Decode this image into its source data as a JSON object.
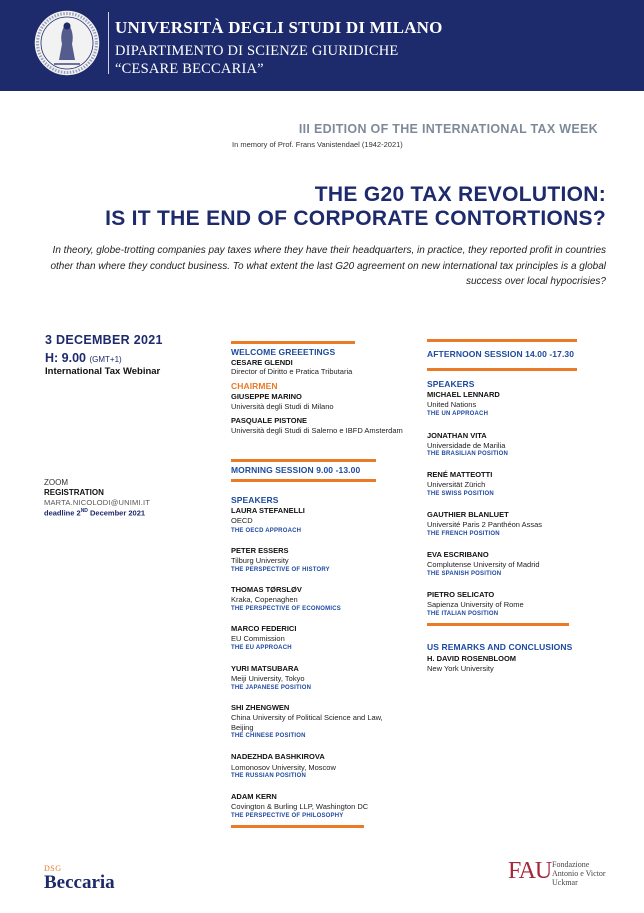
{
  "header": {
    "university": "UNIVERSITÀ DEGLI STUDI DI MILANO",
    "department_line1": "DIPARTIMENTO DI SCIENZE GIURIDICHE",
    "department_line2": "“CESARE BECCARIA”"
  },
  "edition": "III EDITION OF THE INTERNATIONAL TAX WEEK",
  "memory": "In memory of Prof. Frans Vanistendael (1942-2021)",
  "title": {
    "line1": "THE G20 TAX REVOLUTION:",
    "line2": "IS IT THE END OF CORPORATE CONTORTIONS?"
  },
  "intro": "In theory, globe-trotting companies pay taxes where they have their headquarters, in practice, they reported profit in countries other than where they conduct business. To what extent the last G20 agreement on new international tax principles is a global success over local hypocrisies?",
  "event": {
    "date": "3 DECEMBER 2021",
    "time": "H: 9.00",
    "timezone": "(GMT+1)",
    "format": "International Tax Webinar",
    "platform": "ZOOM",
    "registration_label": "REGISTRATION",
    "email": "MARTA.NICOLODI@UNIMI.IT",
    "deadline_prefix": "deadline  2",
    "deadline_sup": "ND",
    "deadline_suffix": " December 2021"
  },
  "welcome": {
    "label": "WELCOME GREEETINGS",
    "name": "CESARE GLENDI",
    "role": "Director of Diritto e Pratica Tributaria"
  },
  "chairmen": {
    "label": "CHAIRMEN",
    "people": [
      {
        "name": "GIUSEPPE MARINO",
        "affiliation": "Università degli Studi di Milano"
      },
      {
        "name": "PASQUALE PISTONE",
        "affiliation": "Università degli Studi di Salerno e IBFD Amsterdam"
      }
    ]
  },
  "morning": {
    "label": "MORNING SESSION 9.00 -13.00",
    "speakers_label": "SPEAKERS",
    "speakers": [
      {
        "name": "LAURA STEFANELLI",
        "affiliation": "OECD",
        "topic": "THE OECD APPROACH"
      },
      {
        "name": "PETER ESSERS",
        "affiliation": "Tilburg University",
        "topic": "THE PERSPECTIVE OF HISTORY"
      },
      {
        "name": "THOMAS TØRSLØV",
        "affiliation": "Kraka, Copenaghen",
        "topic": "THE PERSPECTIVE OF ECONOMICS"
      },
      {
        "name": "MARCO FEDERICI",
        "affiliation": "EU Commission",
        "topic": "THE EU APPROACH"
      },
      {
        "name": "YURI MATSUBARA",
        "affiliation": "Meiji University, Tokyo",
        "topic": "THE JAPANESE POSITION"
      },
      {
        "name": "SHI ZHENGWEN",
        "affiliation": "China University of Political Science and Law, Beijing",
        "topic": "THE CHINESE POSITION"
      },
      {
        "name": "NADEZHDA BASHKIROVA",
        "affiliation": "Lomonosov University, Moscow",
        "topic": "THE RUSSIAN POSITION"
      },
      {
        "name": "ADAM KERN",
        "affiliation": "Covington & Burling LLP, Washington DC",
        "topic": "THE PERSPECTIVE OF PHILOSOPHY"
      }
    ]
  },
  "afternoon": {
    "label": "AFTERNOON SESSION 14.00 -17.30",
    "speakers_label": "SPEAKERS",
    "speakers": [
      {
        "name": "MICHAEL LENNARD",
        "affiliation": "United Nations",
        "topic": "THE UN APPROACH"
      },
      {
        "name": "JONATHAN VITA",
        "affiliation": "Universidade de Marilia",
        "topic": "THE BRASILIAN POSITION"
      },
      {
        "name": "RENÉ MATTEOTTI",
        "affiliation": "Universität Zürich",
        "topic": "THE SWISS POSITION"
      },
      {
        "name": "GAUTHIER BLANLUET",
        "affiliation": "Université Paris 2 Panthéon Assas",
        "topic": "THE FRENCH POSITION"
      },
      {
        "name": "EVA ESCRIBANO",
        "affiliation": "Complutense University of Madrid",
        "topic": "THE SPANISH POSITION"
      },
      {
        "name": "PIETRO SELICATO",
        "affiliation": "Sapienza University of Rome",
        "topic": "THE ITALIAN POSITION"
      }
    ]
  },
  "remarks": {
    "label": "US REMARKS AND CONCLUSIONS",
    "name": "H. DAVID ROSENBLOOM",
    "affiliation": "New York University"
  },
  "logos": {
    "dsg": "DSG",
    "beccaria": "Beccaria",
    "fau_mark": "FAU",
    "fau_line1": "Fondazione",
    "fau_line2": "Antonio e Victor",
    "fau_line3": "Uckmar"
  }
}
